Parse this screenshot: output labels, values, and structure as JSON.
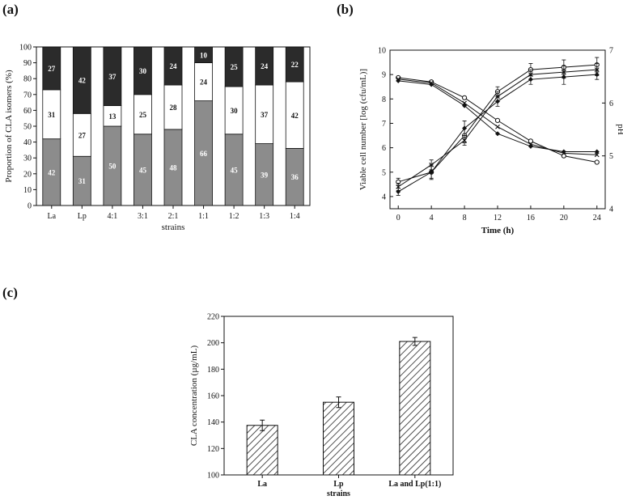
{
  "panels": {
    "a": "(a)",
    "b": "(b)",
    "c": "(c)"
  },
  "chart_data": [
    {
      "id": "a",
      "type": "bar",
      "stacked": true,
      "ylabel": "Proportion of CLA isomers (%)",
      "xlabel": "strains",
      "ylim": [
        0,
        100
      ],
      "yticks": [
        0,
        10,
        20,
        30,
        40,
        50,
        60,
        70,
        80,
        90,
        100
      ],
      "categories": [
        "La",
        "Lp",
        "4:1",
        "3:1",
        "2:1",
        "1:1",
        "1:2",
        "1:3",
        "1:4"
      ],
      "series": [
        {
          "name": "bottom",
          "color": "#8c8c8c",
          "label_color": "#ffffff",
          "values": [
            42,
            31,
            50,
            45,
            48,
            66,
            45,
            39,
            36
          ]
        },
        {
          "name": "middle",
          "color": "#ffffff",
          "label_color": "#111111",
          "values": [
            31,
            27,
            13,
            25,
            28,
            24,
            30,
            37,
            42
          ]
        },
        {
          "name": "top",
          "color": "#2b2b2b",
          "label_color": "#ffffff",
          "values": [
            27,
            42,
            37,
            30,
            24,
            10,
            25,
            24,
            22
          ]
        }
      ]
    },
    {
      "id": "b",
      "type": "line",
      "xlabel": "Time  (h)",
      "ylabel": "Viable cell number [log (cfu/mL)]",
      "y2label": "pH",
      "x": [
        0,
        4,
        8,
        12,
        16,
        20,
        24
      ],
      "xlim": [
        -1,
        25
      ],
      "ylim": [
        3.5,
        10
      ],
      "yticks": [
        4,
        5,
        6,
        7,
        8,
        9,
        10
      ],
      "y2lim": [
        4,
        7
      ],
      "y2ticks": [
        4,
        5,
        6,
        7
      ],
      "series": [
        {
          "name": "viable-1",
          "axis": "left",
          "marker": "open-circle",
          "values": [
            4.6,
            5.0,
            6.5,
            8.3,
            9.2,
            9.3,
            9.4
          ],
          "err": [
            0.15,
            0.3,
            0.3,
            0.2,
            0.25,
            0.3,
            0.3
          ]
        },
        {
          "name": "viable-2",
          "axis": "left",
          "marker": "cross",
          "values": [
            4.4,
            5.3,
            6.3,
            8.1,
            9.0,
            9.1,
            9.2
          ],
          "err": [
            0.15,
            0.2,
            0.2,
            0.2,
            0.2,
            0.25,
            0.25
          ]
        },
        {
          "name": "viable-3",
          "axis": "left",
          "marker": "diamond",
          "values": [
            4.2,
            5.0,
            6.8,
            7.9,
            8.8,
            8.9,
            9.0
          ],
          "err": [
            0.15,
            0.25,
            0.3,
            0.2,
            0.2,
            0.3,
            0.2
          ]
        },
        {
          "name": "ph-1",
          "axis": "right",
          "marker": "open-circle",
          "values": [
            6.48,
            6.4,
            6.1,
            5.67,
            5.28,
            5.0,
            4.88
          ]
        },
        {
          "name": "ph-2",
          "axis": "right",
          "marker": "cross",
          "values": [
            6.45,
            6.38,
            6.0,
            5.55,
            5.22,
            5.05,
            5.02
          ]
        },
        {
          "name": "ph-3",
          "axis": "right",
          "marker": "diamond",
          "values": [
            6.42,
            6.35,
            5.95,
            5.42,
            5.18,
            5.08,
            5.08
          ]
        }
      ]
    },
    {
      "id": "c",
      "type": "bar",
      "ylabel": "CLA  concentration  (µg/mL)",
      "xlabel": "strains",
      "ylim": [
        100,
        220
      ],
      "yticks": [
        100,
        120,
        140,
        160,
        180,
        200,
        220
      ],
      "categories": [
        "La",
        "Lp",
        "La and Lp(1:1)"
      ],
      "values": [
        137.5,
        155,
        201
      ],
      "err": [
        4,
        4,
        3
      ],
      "pattern": "hatched"
    }
  ]
}
